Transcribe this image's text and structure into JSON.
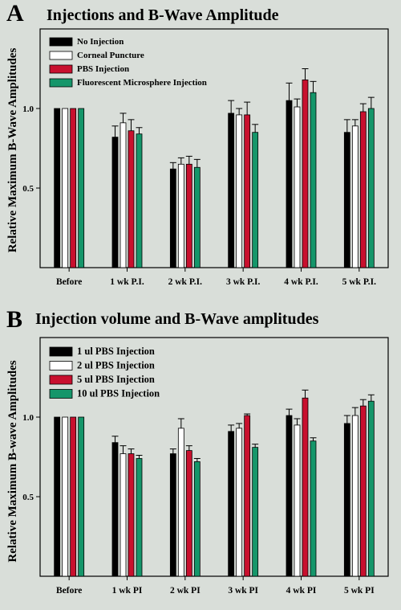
{
  "colors": {
    "background": "#d9ded9",
    "series": [
      "#000000",
      "#ffffff",
      "#c8102e",
      "#15966a"
    ]
  },
  "chart_data": [
    {
      "type": "bar",
      "panel": "A",
      "title": "Injections and B-Wave Amplitude",
      "xlabel": "",
      "ylabel": "Relative Maximum B-Wave Amplitudes",
      "ylim": [
        0,
        1.5
      ],
      "yticks": [
        0.5,
        1.0
      ],
      "ytick_labels": [
        "0.5",
        "1.0"
      ],
      "grid": false,
      "legend_position": "top-left",
      "error_bars": true,
      "categories": [
        "Before",
        "1 wk P.I.",
        "2 wk P.I.",
        "3 wk P.I.",
        "4 wk P.I.",
        "5 wk P.I."
      ],
      "series": [
        {
          "name": "No Injection",
          "values": [
            1.0,
            0.82,
            0.62,
            0.97,
            1.05,
            0.85
          ],
          "errors": [
            0.0,
            0.07,
            0.04,
            0.08,
            0.11,
            0.08
          ]
        },
        {
          "name": "Corneal Puncture",
          "values": [
            1.0,
            0.91,
            0.65,
            0.96,
            1.01,
            0.89
          ],
          "errors": [
            0.0,
            0.06,
            0.04,
            0.04,
            0.05,
            0.04
          ]
        },
        {
          "name": "PBS Injection",
          "values": [
            1.0,
            0.86,
            0.65,
            0.96,
            1.18,
            0.98
          ],
          "errors": [
            0.0,
            0.07,
            0.05,
            0.08,
            0.07,
            0.05
          ]
        },
        {
          "name": "Fluorescent Microsphere Injection",
          "values": [
            1.0,
            0.84,
            0.63,
            0.85,
            1.1,
            1.0
          ],
          "errors": [
            0.0,
            0.04,
            0.05,
            0.05,
            0.07,
            0.07
          ]
        }
      ]
    },
    {
      "type": "bar",
      "panel": "B",
      "title": "Injection volume and B-Wave amplitudes",
      "xlabel": "",
      "ylabel": "Relative Maximum B-wave Amplitudes",
      "ylim": [
        0,
        1.5
      ],
      "yticks": [
        0.5,
        1.0
      ],
      "ytick_labels": [
        "0.5",
        "1.0"
      ],
      "grid": false,
      "legend_position": "top-left",
      "error_bars": true,
      "categories": [
        "Before",
        "1 wk PI",
        "2 wk PI",
        "3 wk PI",
        "4 wk PI",
        "5 wk PI"
      ],
      "series": [
        {
          "name": "1 ul PBS Injection",
          "values": [
            1.0,
            0.84,
            0.77,
            0.91,
            1.01,
            0.96
          ],
          "errors": [
            0.0,
            0.04,
            0.03,
            0.04,
            0.04,
            0.05
          ]
        },
        {
          "name": "2 ul PBS Injection",
          "values": [
            1.0,
            0.77,
            0.93,
            0.93,
            0.95,
            1.01
          ],
          "errors": [
            0.0,
            0.05,
            0.06,
            0.03,
            0.04,
            0.05
          ]
        },
        {
          "name": "5 ul PBS Injection",
          "values": [
            1.0,
            0.77,
            0.79,
            1.01,
            1.12,
            1.07
          ],
          "errors": [
            0.0,
            0.03,
            0.03,
            0.01,
            0.05,
            0.04
          ]
        },
        {
          "name": "10 ul PBS Injection",
          "values": [
            1.0,
            0.74,
            0.72,
            0.81,
            0.85,
            1.1
          ],
          "errors": [
            0.0,
            0.02,
            0.02,
            0.02,
            0.02,
            0.04
          ]
        }
      ]
    }
  ]
}
